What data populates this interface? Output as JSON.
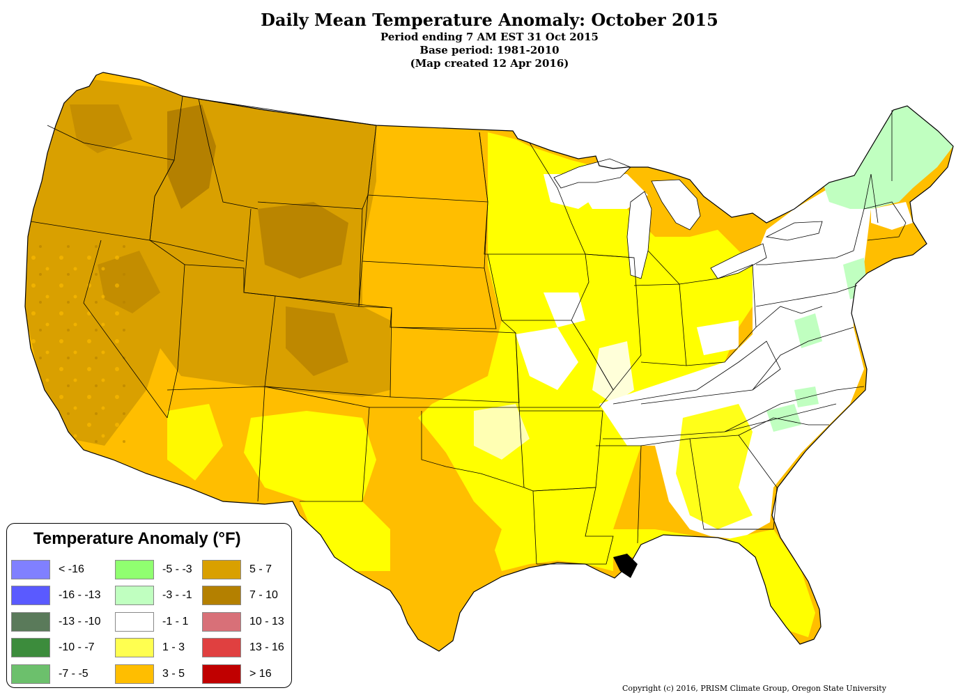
{
  "title": "Daily Mean Temperature Anomaly: October 2015",
  "subtitles": [
    "Period ending 7 AM EST 31 Oct 2015",
    "Base period: 1981-2010",
    "(Map created 12 Apr 2016)"
  ],
  "legend": {
    "title": "Temperature Anomaly (°F)",
    "items": [
      {
        "label": "< -16",
        "color": "#8080ff"
      },
      {
        "label": "-16 - -13",
        "color": "#5a5aff"
      },
      {
        "label": "-13 - -10",
        "color": "#5a7a5a"
      },
      {
        "label": "-10 - -7",
        "color": "#3c8c3c"
      },
      {
        "label": "-7 - -5",
        "color": "#6cc06c"
      },
      {
        "label": "-5 - -3",
        "color": "#90ff70"
      },
      {
        "label": "-3 - -1",
        "color": "#c0ffc0"
      },
      {
        "label": "-1 - 1",
        "color": "#ffffff"
      },
      {
        "label": "1 - 3",
        "color": "#ffff50"
      },
      {
        "label": "3 - 5",
        "color": "#ffbe00"
      },
      {
        "label": "5 - 7",
        "color": "#d9a000"
      },
      {
        "label": "7 - 10",
        "color": "#b48000"
      },
      {
        "label": "10 - 13",
        "color": "#d87078"
      },
      {
        "label": "13 - 16",
        "color": "#e04040"
      },
      {
        "label": "> 16",
        "color": "#c00000"
      }
    ]
  },
  "copyright": "Copyright (c) 2016, PRISM Climate Group, Oregon State University"
}
